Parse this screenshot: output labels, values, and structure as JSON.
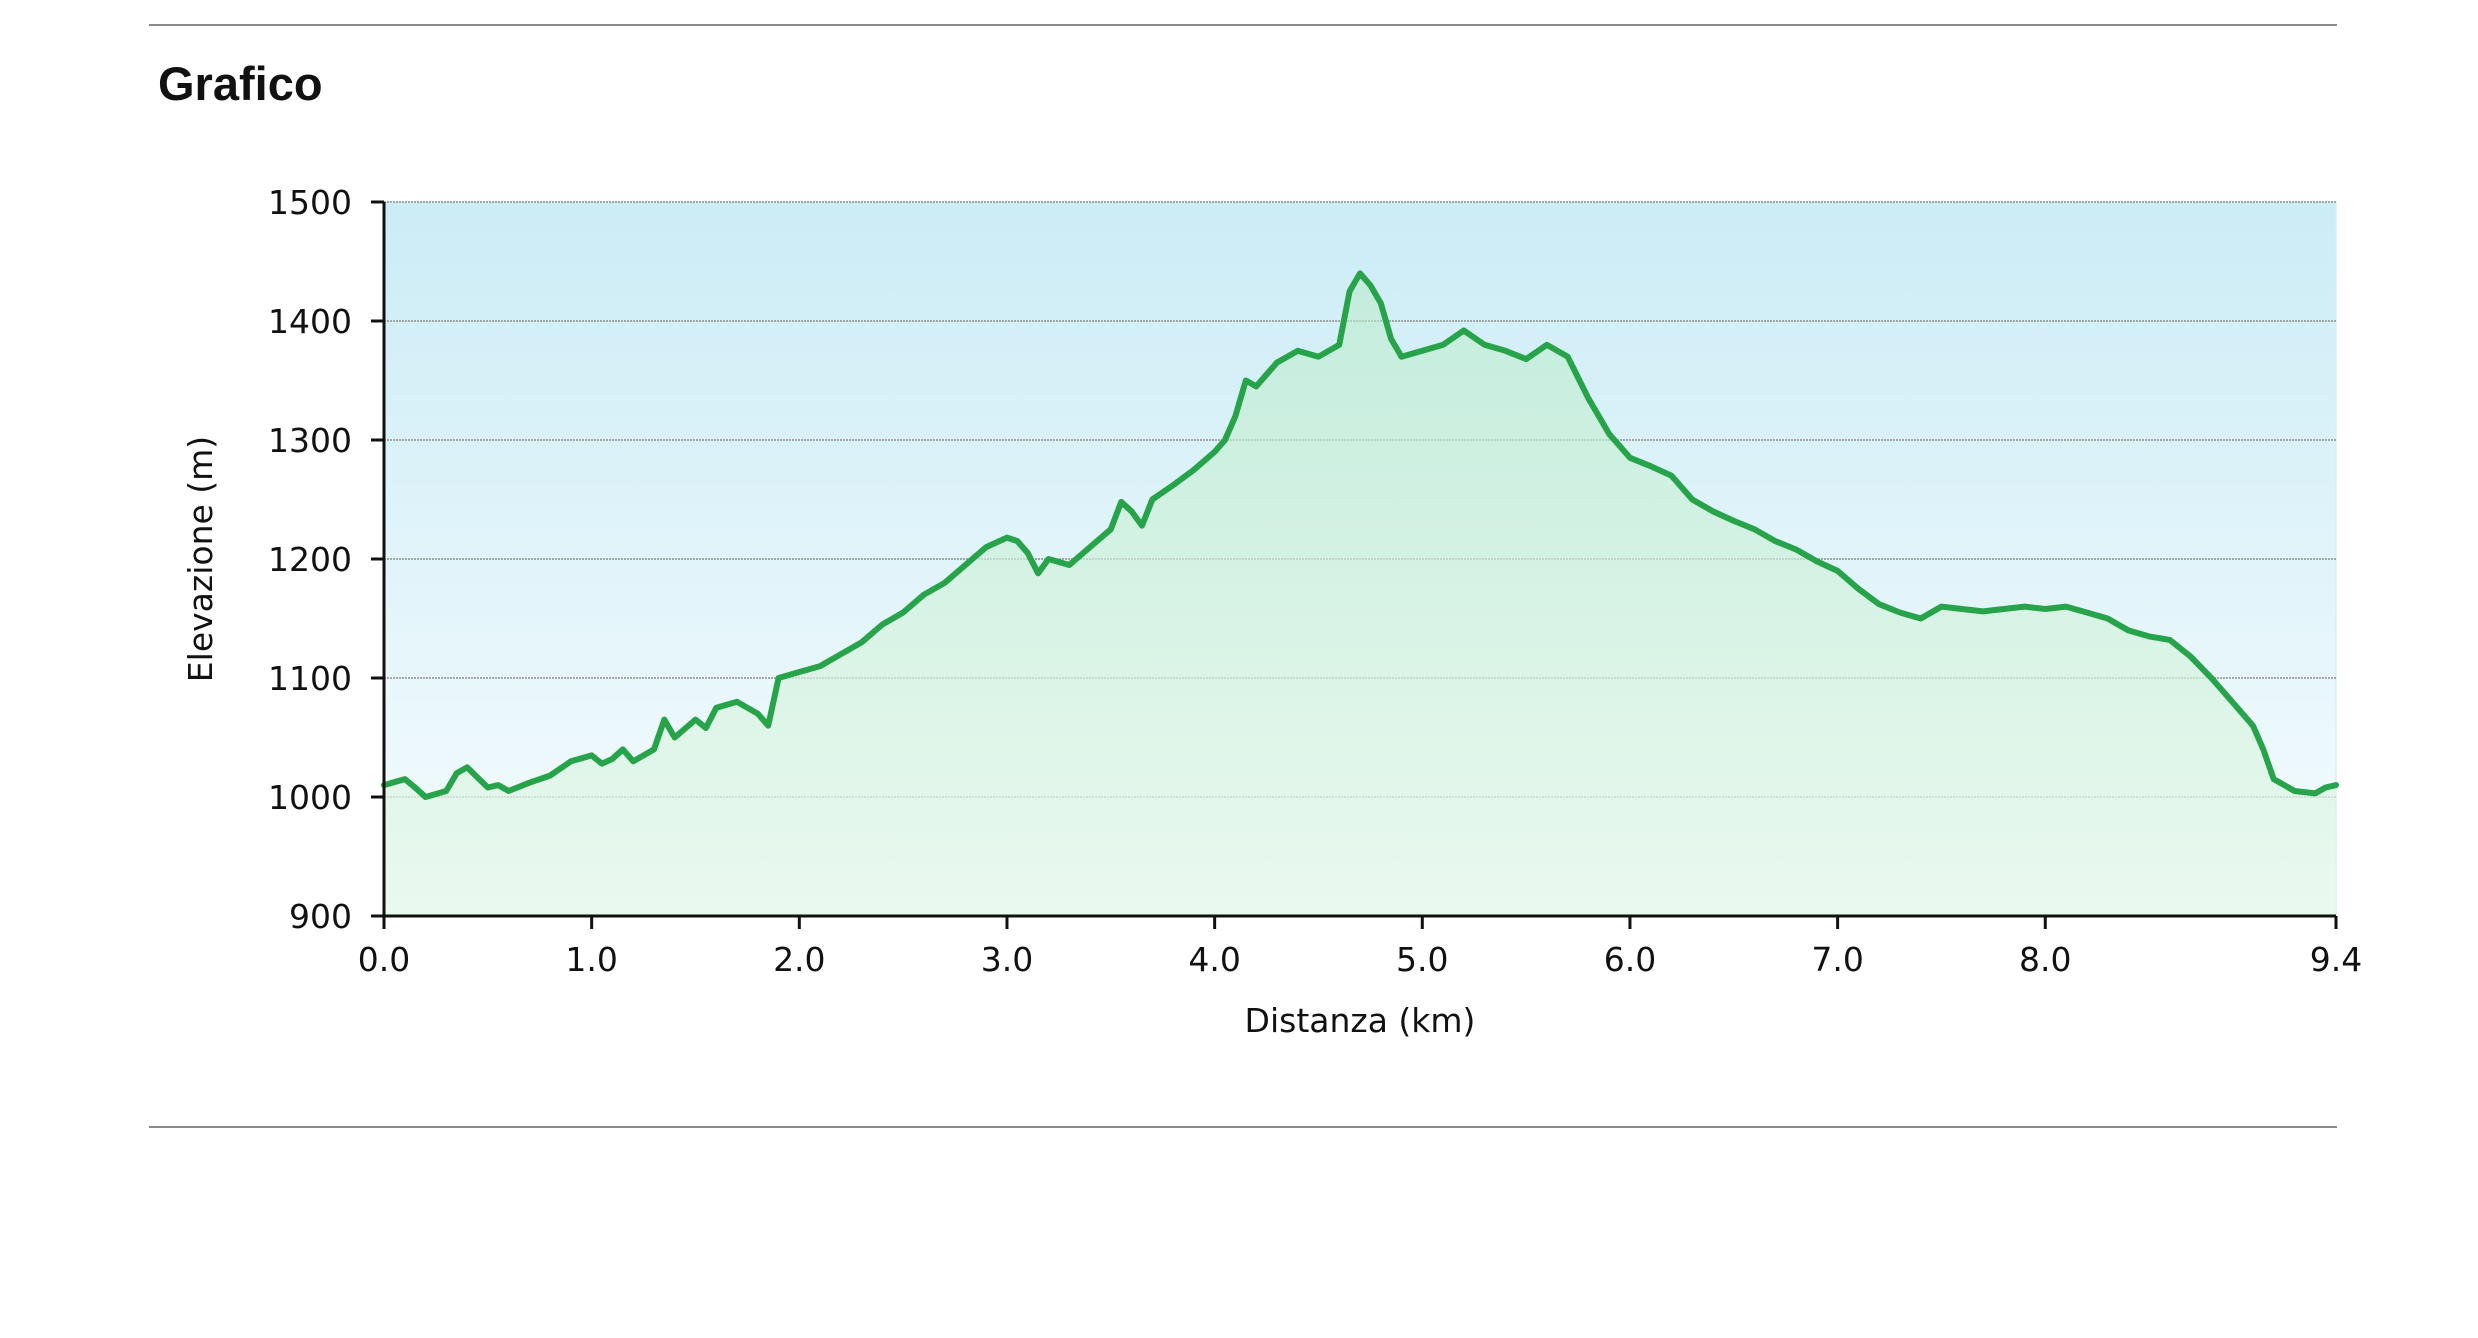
{
  "section": {
    "title": "Grafico"
  },
  "chart_data": {
    "type": "area",
    "xlabel": "Distanza (km)",
    "ylabel": "Elevazione (m)",
    "xlim": [
      0,
      9.4
    ],
    "ylim": [
      900,
      1500
    ],
    "x_ticks": [
      0.0,
      1.0,
      2.0,
      3.0,
      4.0,
      5.0,
      6.0,
      7.0,
      8.0,
      9.4
    ],
    "x_tick_labels": [
      "0.0",
      "1.0",
      "2.0",
      "3.0",
      "4.0",
      "5.0",
      "6.0",
      "7.0",
      "8.0",
      "9.4"
    ],
    "y_ticks": [
      900,
      1000,
      1100,
      1200,
      1300,
      1400,
      1500
    ],
    "y_tick_labels": [
      "900",
      "1000",
      "1100",
      "1200",
      "1300",
      "1400",
      "1500"
    ],
    "grid": {
      "horizontal": true,
      "vertical": false
    },
    "colors": {
      "line": "#27a44a",
      "fill": "#b9ebc8",
      "sky_top": "#ccecf6",
      "sky_bottom": "#f6fcfe",
      "grid": "#8e8e8e"
    },
    "series": [
      {
        "x": [
          0.0,
          0.1,
          0.15,
          0.2,
          0.3,
          0.35,
          0.4,
          0.5,
          0.55,
          0.6,
          0.7,
          0.8,
          0.9,
          1.0,
          1.05,
          1.1,
          1.15,
          1.2,
          1.3,
          1.35,
          1.4,
          1.5,
          1.55,
          1.6,
          1.7,
          1.8,
          1.85,
          1.9,
          2.0,
          2.1,
          2.2,
          2.3,
          2.4,
          2.5,
          2.6,
          2.7,
          2.8,
          2.9,
          3.0,
          3.05,
          3.1,
          3.15,
          3.2,
          3.3,
          3.4,
          3.5,
          3.55,
          3.6,
          3.65,
          3.7,
          3.8,
          3.9,
          4.0,
          4.05,
          4.1,
          4.15,
          4.2,
          4.3,
          4.4,
          4.5,
          4.6,
          4.65,
          4.7,
          4.75,
          4.8,
          4.85,
          4.9,
          5.0,
          5.1,
          5.2,
          5.3,
          5.4,
          5.5,
          5.6,
          5.7,
          5.8,
          5.9,
          6.0,
          6.1,
          6.2,
          6.3,
          6.4,
          6.5,
          6.6,
          6.7,
          6.8,
          6.9,
          7.0,
          7.1,
          7.2,
          7.3,
          7.4,
          7.5,
          7.6,
          7.7,
          7.8,
          7.9,
          8.0,
          8.1,
          8.2,
          8.3,
          8.4,
          8.5,
          8.6,
          8.7,
          8.8,
          8.9,
          9.0,
          9.05,
          9.1,
          9.2,
          9.3,
          9.35,
          9.4
        ],
        "y": [
          1010,
          1015,
          1008,
          1000,
          1005,
          1020,
          1025,
          1008,
          1010,
          1005,
          1012,
          1018,
          1030,
          1035,
          1028,
          1032,
          1040,
          1030,
          1040,
          1065,
          1050,
          1065,
          1058,
          1075,
          1080,
          1070,
          1060,
          1100,
          1105,
          1110,
          1120,
          1130,
          1145,
          1155,
          1170,
          1180,
          1195,
          1210,
          1218,
          1215,
          1205,
          1188,
          1200,
          1195,
          1210,
          1225,
          1248,
          1240,
          1228,
          1250,
          1262,
          1275,
          1290,
          1300,
          1320,
          1350,
          1345,
          1365,
          1375,
          1370,
          1380,
          1425,
          1440,
          1430,
          1415,
          1385,
          1370,
          1375,
          1380,
          1392,
          1380,
          1375,
          1368,
          1380,
          1370,
          1335,
          1305,
          1285,
          1278,
          1270,
          1250,
          1240,
          1232,
          1225,
          1215,
          1208,
          1198,
          1190,
          1175,
          1162,
          1155,
          1150,
          1160,
          1158,
          1156,
          1158,
          1160,
          1158,
          1160,
          1155,
          1150,
          1140,
          1135,
          1132,
          1118,
          1100,
          1080,
          1060,
          1040,
          1015,
          1005,
          1003,
          1008,
          1010
        ]
      }
    ]
  }
}
